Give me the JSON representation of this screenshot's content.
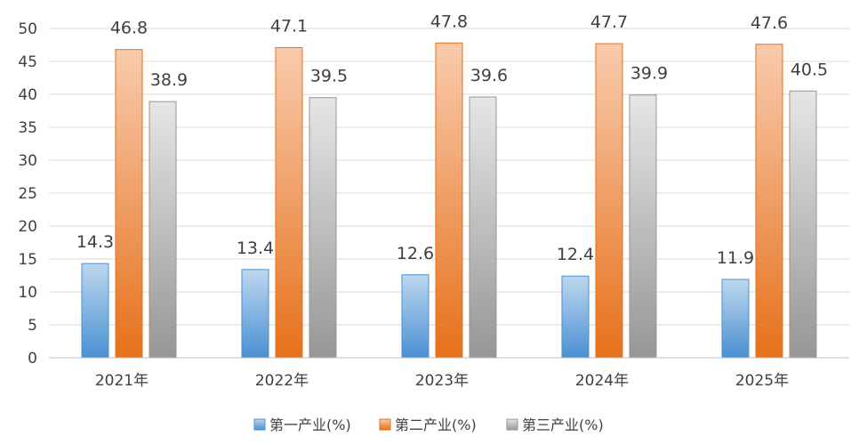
{
  "chart_data": {
    "type": "bar",
    "categories": [
      "2021年",
      "2022年",
      "2023年",
      "2024年",
      "2025年"
    ],
    "series": [
      {
        "name": "第一产业(%)",
        "values": [
          14.3,
          13.4,
          12.6,
          12.4,
          11.9
        ],
        "color": "#5B9BD5"
      },
      {
        "name": "第二产业(%)",
        "values": [
          46.8,
          47.1,
          47.8,
          47.7,
          47.6
        ],
        "color": "#ED7D31"
      },
      {
        "name": "第三产业(%)",
        "values": [
          38.9,
          39.5,
          39.6,
          39.9,
          40.5
        ],
        "color": "#A5A5A5"
      }
    ],
    "ylim": [
      0,
      50
    ],
    "yticks": [
      0,
      5,
      10,
      15,
      20,
      25,
      30,
      35,
      40,
      45,
      50
    ],
    "grid": true,
    "legend": "bottom",
    "data_labels": true
  }
}
